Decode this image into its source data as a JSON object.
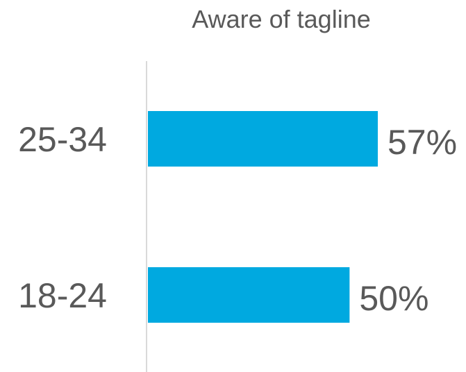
{
  "chart_data": {
    "type": "bar",
    "orientation": "horizontal",
    "title": "Aware of tagline",
    "categories": [
      "25-34",
      "18-24"
    ],
    "series": [
      {
        "values": [
          57,
          50
        ],
        "value_labels": [
          "57%",
          "50%"
        ],
        "color": "#00A9E0"
      }
    ],
    "xlim": [
      0,
      100
    ],
    "axis_color": "#D9D9D9",
    "text_color": "#595959",
    "grid": false,
    "legend": "none"
  }
}
